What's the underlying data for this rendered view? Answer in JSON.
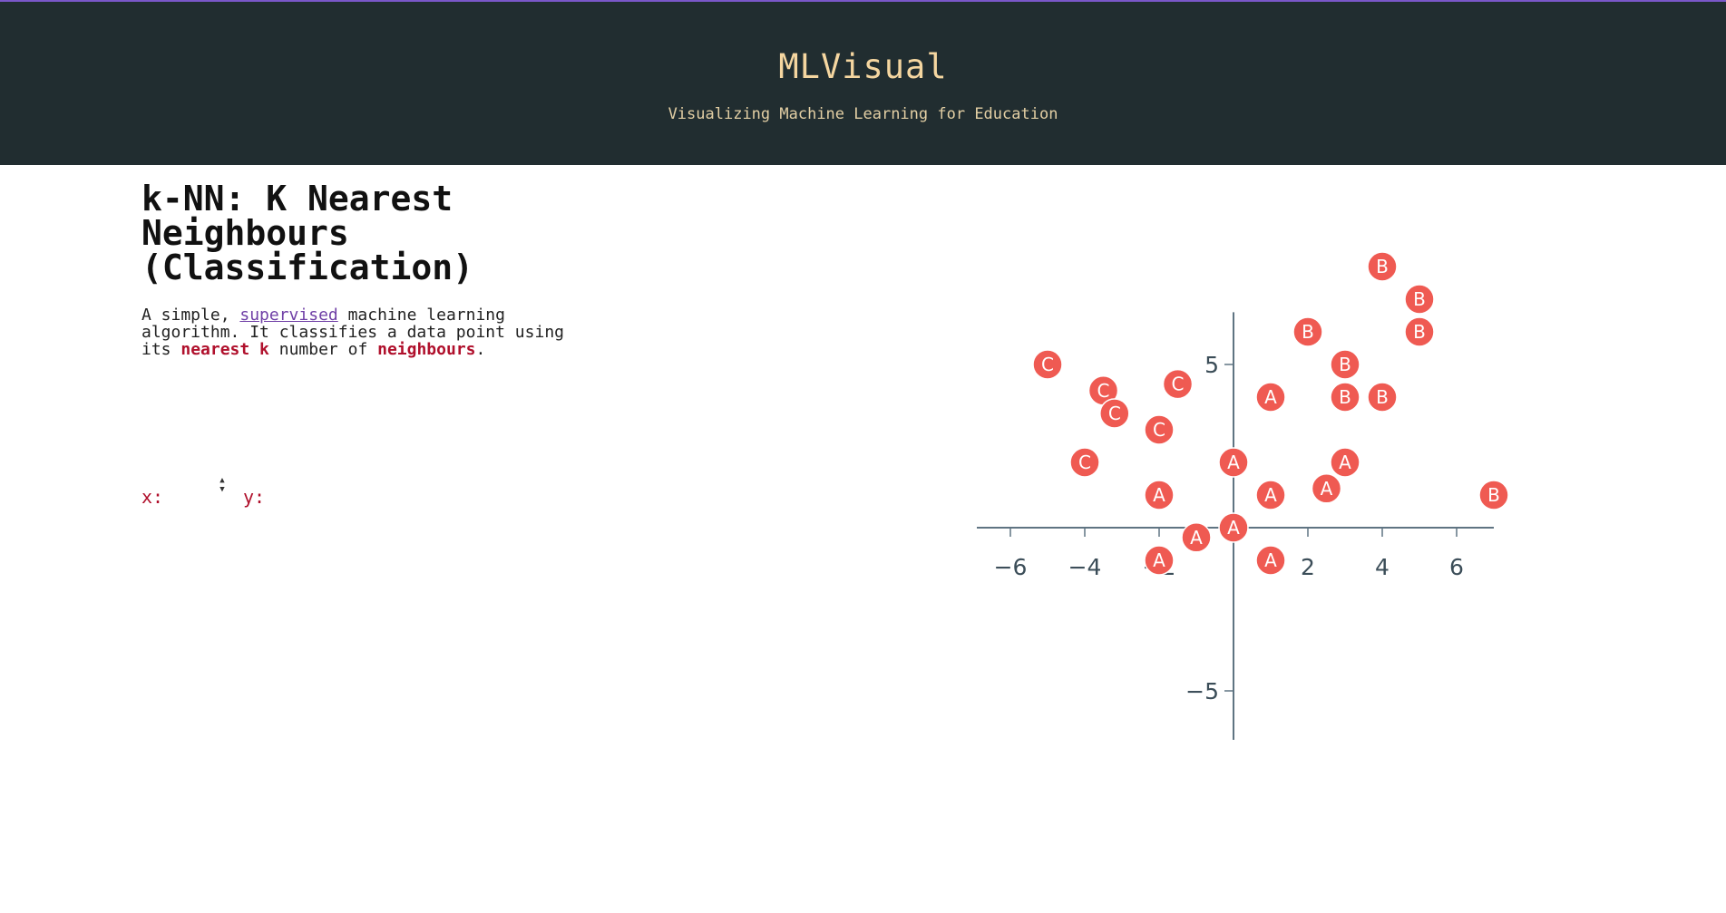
{
  "header": {
    "title": "MLVisual",
    "subtitle": "Visualizing Machine Learning for Education"
  },
  "page": {
    "title": "k-NN: K Nearest Neighbours (Classification)",
    "description": {
      "part1": "A simple, ",
      "link": "supervised",
      "part2": " machine learning algorithm. It classifies a data point using its ",
      "hl1": "nearest k",
      "part3": " number of ",
      "hl2": "neighbours",
      "part4": "."
    }
  },
  "inputs": {
    "x_label": "x:",
    "y_label": "y:",
    "x_value": "",
    "y_value": ""
  },
  "colors": {
    "header_bg": "#212d30",
    "accent": "#7a57c9",
    "point_fill": "#ef5a52",
    "highlight": "#b0102c"
  },
  "chart_data": {
    "type": "scatter",
    "title": "",
    "xlabel": "",
    "ylabel": "",
    "xlim": [
      -7,
      7
    ],
    "ylim": [
      -8,
      8
    ],
    "x_ticks": [
      -6,
      -4,
      -2,
      2,
      4,
      6
    ],
    "x_tick_labels": [
      "−6",
      "−4",
      "−2",
      "2",
      "4",
      "6"
    ],
    "y_ticks": [
      5,
      -5
    ],
    "y_tick_labels": [
      "5",
      "−5"
    ],
    "grid": false,
    "points": [
      {
        "x": 4,
        "y": 8,
        "label": "B"
      },
      {
        "x": 5,
        "y": 7,
        "label": "B"
      },
      {
        "x": 5,
        "y": 6,
        "label": "B"
      },
      {
        "x": 2,
        "y": 6,
        "label": "B"
      },
      {
        "x": 3,
        "y": 5,
        "label": "B"
      },
      {
        "x": 3,
        "y": 4,
        "label": "B"
      },
      {
        "x": 4,
        "y": 4,
        "label": "B"
      },
      {
        "x": 7,
        "y": 1,
        "label": "B"
      },
      {
        "x": 1,
        "y": 4,
        "label": "A"
      },
      {
        "x": 0,
        "y": 2,
        "label": "A"
      },
      {
        "x": 3,
        "y": 2,
        "label": "A"
      },
      {
        "x": 2.5,
        "y": 1.2,
        "label": "A"
      },
      {
        "x": -2,
        "y": 1,
        "label": "A"
      },
      {
        "x": 1,
        "y": 1,
        "label": "A"
      },
      {
        "x": 0,
        "y": 0,
        "label": "A"
      },
      {
        "x": -1,
        "y": -0.3,
        "label": "A"
      },
      {
        "x": -2,
        "y": -1,
        "label": "A"
      },
      {
        "x": 1,
        "y": -1,
        "label": "A"
      },
      {
        "x": -5,
        "y": 5,
        "label": "C"
      },
      {
        "x": -3.5,
        "y": 4.2,
        "label": "C"
      },
      {
        "x": -3.2,
        "y": 3.5,
        "label": "C"
      },
      {
        "x": -1.5,
        "y": 4.4,
        "label": "C"
      },
      {
        "x": -2,
        "y": 3,
        "label": "C"
      },
      {
        "x": -4,
        "y": 2,
        "label": "C"
      }
    ]
  }
}
